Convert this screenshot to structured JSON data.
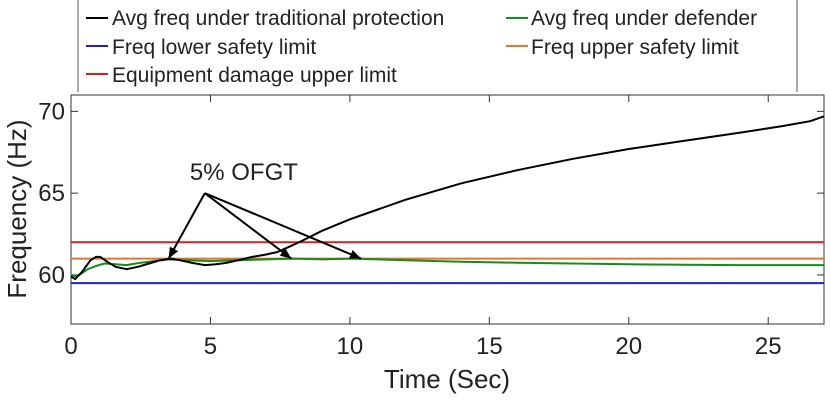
{
  "chart_data": {
    "type": "line",
    "title": "",
    "xlabel": "Time (Sec)",
    "ylabel": "Frequency (Hz)",
    "xlim": [
      0,
      27
    ],
    "ylim": [
      57,
      71
    ],
    "xticks": [
      0,
      5,
      10,
      15,
      20,
      25
    ],
    "yticks": [
      60,
      65,
      70
    ],
    "grid": false,
    "legend_position": "top",
    "series": [
      {
        "name": "Avg freq under traditional protection",
        "color": "#000000",
        "x": [
          0,
          0.15,
          0.4,
          0.7,
          0.9,
          1.05,
          1.3,
          1.6,
          2.0,
          2.4,
          2.8,
          3.2,
          3.6,
          3.9,
          4.3,
          4.8,
          5.2,
          5.6,
          6.0,
          6.5,
          7.0,
          7.4,
          7.8,
          8.3,
          9.0,
          10.0,
          11.0,
          12.0,
          14.0,
          16.0,
          18.0,
          20.0,
          22.0,
          24.0,
          25.5,
          26.5,
          27.0
        ],
        "y": [
          59.9,
          59.75,
          60.2,
          60.9,
          61.1,
          61.1,
          60.8,
          60.5,
          60.35,
          60.5,
          60.7,
          60.9,
          61.0,
          60.9,
          60.75,
          60.6,
          60.65,
          60.75,
          60.9,
          61.1,
          61.25,
          61.4,
          61.7,
          62.1,
          62.7,
          63.4,
          64.0,
          64.6,
          65.6,
          66.4,
          67.1,
          67.7,
          68.2,
          68.7,
          69.1,
          69.4,
          69.7
        ]
      },
      {
        "name": "Avg freq under defender",
        "color": "#1a8a1a",
        "x": [
          0,
          0.3,
          0.6,
          0.9,
          1.2,
          1.6,
          2.0,
          2.5,
          3.0,
          3.5,
          4.0,
          5.0,
          6.0,
          7.0,
          8.0,
          9.0,
          10.0,
          11.0,
          12.0,
          14.0,
          16.0,
          18.0,
          20.0,
          22.0,
          24.0,
          27.0
        ],
        "y": [
          59.9,
          60.0,
          60.35,
          60.55,
          60.7,
          60.65,
          60.6,
          60.75,
          60.85,
          60.95,
          60.9,
          60.85,
          60.9,
          60.95,
          61.0,
          60.95,
          61.0,
          60.95,
          60.9,
          60.8,
          60.75,
          60.7,
          60.65,
          60.62,
          60.6,
          60.6
        ]
      },
      {
        "name": "Freq lower safety limit",
        "color": "#1f1fcc",
        "x": [
          0,
          27
        ],
        "y": [
          59.5,
          59.5
        ]
      },
      {
        "name": "Freq upper safety limit",
        "color": "#e8742a",
        "x": [
          0,
          27
        ],
        "y": [
          61.0,
          61.0
        ]
      },
      {
        "name": "Equipment damage upper limit",
        "color": "#d62020",
        "x": [
          0,
          27
        ],
        "y": [
          62.0,
          62.0
        ]
      }
    ],
    "annotations": [
      {
        "text": "5% OFGT",
        "x": 6.2,
        "y": 66.3,
        "arrow_from": [
          4.8,
          65.0
        ],
        "arrow_to": [
          [
            3.5,
            61.0
          ],
          [
            7.9,
            61.0
          ],
          [
            10.4,
            61.0
          ]
        ]
      }
    ]
  }
}
